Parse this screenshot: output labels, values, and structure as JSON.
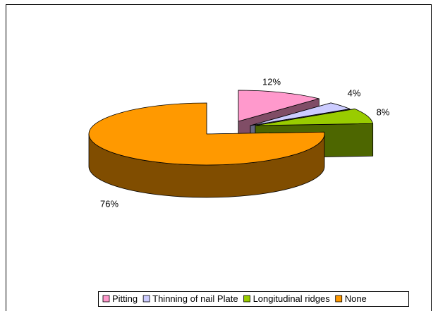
{
  "chart_data": {
    "type": "pie3d",
    "categories": [
      "Pitting",
      "Thinning of nail Plate",
      "Longitudinal ridges",
      "None"
    ],
    "values": [
      12,
      4,
      8,
      76
    ],
    "value_labels": [
      "12%",
      "4%",
      "8%",
      "76%"
    ],
    "colors": [
      "#ff99cc",
      "#ccccff",
      "#99cc00",
      "#ff9900"
    ],
    "legend": "bottom"
  }
}
